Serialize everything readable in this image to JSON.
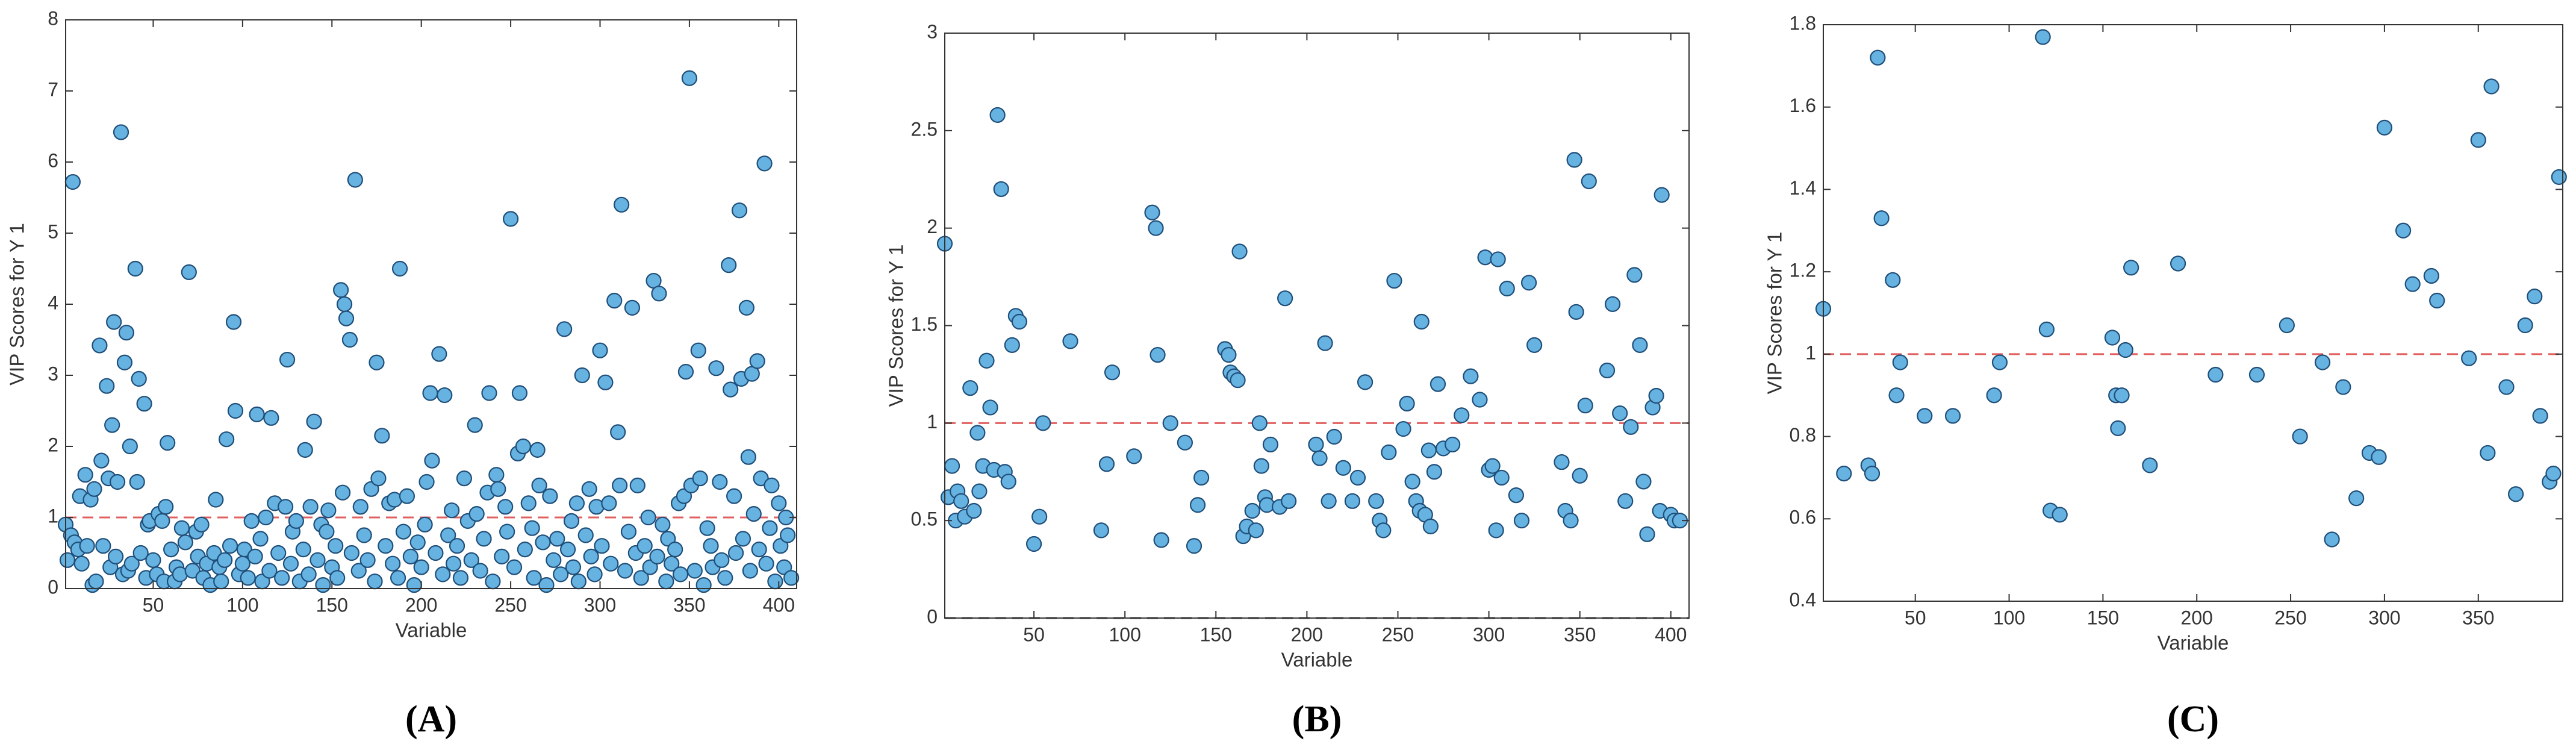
{
  "chart_data": [
    {
      "type": "scatter",
      "panel_label": "(A)",
      "xlabel": "Variable",
      "ylabel": "VIP Scores for Y 1",
      "xlim": [
        1,
        410
      ],
      "ylim": [
        0,
        8
      ],
      "xticks": [
        50,
        100,
        150,
        200,
        250,
        300,
        350,
        400
      ],
      "yticks": [
        0,
        1,
        2,
        3,
        4,
        5,
        6,
        7,
        8
      ],
      "color": "#66b2e0",
      "edge_color": "#1f4e79",
      "threshold": 1,
      "threshold_color": "#e06060",
      "x": [
        1,
        2,
        4,
        5,
        6,
        8,
        9,
        10,
        12,
        13,
        15,
        16,
        17,
        18,
        20,
        21,
        22,
        24,
        25,
        26,
        27,
        28,
        29,
        30,
        32,
        33,
        34,
        35,
        36,
        37,
        38,
        40,
        41,
        42,
        43,
        45,
        46,
        47,
        48,
        50,
        52,
        53,
        55,
        56,
        57,
        58,
        60,
        62,
        63,
        65,
        66,
        68,
        70,
        72,
        74,
        75,
        77,
        78,
        80,
        82,
        84,
        85,
        87,
        88,
        90,
        91,
        93,
        95,
        96,
        98,
        100,
        101,
        103,
        105,
        107,
        108,
        110,
        111,
        113,
        115,
        116,
        118,
        120,
        122,
        124,
        125,
        127,
        128,
        130,
        132,
        134,
        135,
        137,
        138,
        140,
        142,
        144,
        145,
        147,
        148,
        150,
        152,
        153,
        155,
        156,
        157,
        158,
        160,
        161,
        163,
        165,
        166,
        168,
        170,
        172,
        174,
        175,
        176,
        178,
        180,
        182,
        184,
        185,
        187,
        188,
        190,
        192,
        194,
        196,
        198,
        200,
        202,
        203,
        205,
        206,
        208,
        210,
        212,
        213,
        215,
        217,
        218,
        220,
        222,
        224,
        226,
        228,
        230,
        231,
        233,
        235,
        237,
        238,
        240,
        242,
        243,
        245,
        247,
        248,
        250,
        252,
        254,
        255,
        257,
        258,
        260,
        262,
        263,
        265,
        266,
        268,
        270,
        272,
        274,
        276,
        278,
        280,
        282,
        284,
        285,
        287,
        288,
        290,
        292,
        294,
        295,
        297,
        298,
        300,
        301,
        303,
        305,
        306,
        308,
        310,
        311,
        312,
        314,
        316,
        318,
        320,
        321,
        323,
        325,
        327,
        328,
        330,
        332,
        333,
        335,
        337,
        338,
        340,
        342,
        344,
        345,
        347,
        348,
        350,
        351,
        353,
        355,
        356,
        358,
        360,
        362,
        363,
        365,
        367,
        368,
        370,
        372,
        373,
        375,
        376,
        378,
        379,
        380,
        382,
        383,
        384,
        385,
        386,
        388,
        389,
        390,
        392,
        393,
        395,
        396,
        398,
        400,
        401,
        403,
        404,
        405,
        407
      ],
      "values": [
        0.9,
        0.4,
        0.75,
        5.72,
        0.65,
        0.55,
        1.3,
        0.35,
        1.6,
        0.6,
        1.25,
        0.05,
        1.4,
        0.1,
        3.42,
        1.8,
        0.6,
        2.85,
        1.55,
        0.3,
        2.3,
        3.75,
        0.45,
        1.5,
        6.42,
        0.2,
        3.18,
        3.6,
        0.25,
        2.0,
        0.35,
        4.5,
        1.5,
        2.95,
        0.5,
        2.6,
        0.15,
        0.9,
        0.95,
        0.4,
        0.2,
        1.05,
        0.95,
        0.1,
        1.15,
        2.05,
        0.55,
        0.1,
        0.3,
        0.2,
        0.85,
        0.65,
        4.45,
        0.25,
        0.8,
        0.45,
        0.9,
        0.15,
        0.35,
        0.05,
        0.5,
        1.25,
        0.3,
        0.1,
        0.4,
        2.1,
        0.6,
        3.75,
        2.5,
        0.2,
        0.35,
        0.55,
        0.15,
        0.95,
        0.45,
        2.45,
        0.7,
        0.1,
        1.0,
        0.25,
        2.4,
        1.2,
        0.5,
        0.15,
        1.15,
        3.22,
        0.35,
        0.8,
        0.95,
        0.1,
        0.55,
        1.95,
        0.2,
        1.15,
        2.35,
        0.4,
        0.9,
        0.05,
        0.8,
        1.1,
        0.3,
        0.6,
        0.15,
        4.2,
        1.35,
        4.0,
        3.8,
        3.5,
        0.5,
        5.75,
        0.25,
        1.15,
        0.75,
        0.4,
        1.4,
        0.1,
        3.18,
        1.55,
        2.15,
        0.6,
        1.2,
        0.35,
        1.25,
        0.15,
        4.5,
        0.8,
        1.3,
        0.45,
        0.05,
        0.65,
        0.3,
        0.9,
        1.5,
        2.75,
        1.8,
        0.5,
        3.3,
        0.2,
        2.72,
        0.75,
        1.1,
        0.35,
        0.6,
        0.15,
        1.55,
        0.95,
        0.4,
        2.3,
        1.05,
        0.25,
        0.7,
        1.35,
        2.75,
        0.1,
        1.6,
        1.4,
        0.45,
        1.15,
        0.8,
        5.2,
        0.3,
        1.9,
        2.75,
        2.0,
        0.55,
        1.2,
        0.85,
        0.15,
        1.95,
        1.45,
        0.65,
        0.05,
        1.3,
        0.4,
        0.7,
        0.2,
        3.65,
        0.55,
        0.95,
        0.3,
        1.2,
        0.1,
        3.0,
        0.75,
        1.4,
        0.45,
        0.2,
        1.15,
        3.35,
        0.6,
        2.9,
        1.2,
        0.35,
        4.05,
        2.2,
        1.45,
        5.4,
        0.25,
        0.8,
        3.95,
        0.5,
        1.45,
        0.15,
        0.6,
        1.0,
        0.3,
        4.33,
        0.45,
        4.15,
        0.9,
        0.1,
        0.7,
        0.35,
        0.55,
        1.2,
        0.2,
        1.3,
        3.05,
        7.18,
        1.45,
        0.25,
        3.35,
        1.55,
        0.05,
        0.85,
        0.6,
        0.3,
        3.1,
        1.5,
        0.4,
        0.15,
        4.55,
        2.8,
        1.3,
        0.5,
        5.32,
        2.95,
        0.7,
        3.95,
        1.85,
        0.25,
        3.02,
        1.05,
        3.2,
        0.55,
        1.55,
        5.98,
        0.35,
        0.85,
        1.45,
        0.1,
        1.2,
        0.6,
        0.3,
        1.0,
        0.75,
        0.15
      ]
    },
    {
      "type": "scatter",
      "panel_label": "(B)",
      "xlabel": "Variable",
      "ylabel": "VIP Scores for Y 1",
      "xlim": [
        1,
        410
      ],
      "ylim": [
        0,
        3
      ],
      "xticks": [
        50,
        100,
        150,
        200,
        250,
        300,
        350,
        400
      ],
      "yticks": [
        0,
        0.5,
        1,
        1.5,
        2,
        2.5,
        3
      ],
      "color": "#66b2e0",
      "edge_color": "#1f4e79",
      "threshold": 1,
      "threshold_color": "#e06060",
      "baseline": 0,
      "x": [
        1,
        3,
        5,
        7,
        8,
        10,
        12,
        15,
        17,
        19,
        20,
        22,
        24,
        26,
        28,
        30,
        32,
        34,
        36,
        38,
        40,
        42,
        50,
        53,
        55,
        70,
        87,
        90,
        93,
        105,
        115,
        117,
        118,
        120,
        125,
        133,
        138,
        140,
        142,
        155,
        157,
        158,
        160,
        162,
        163,
        165,
        167,
        170,
        172,
        174,
        175,
        177,
        178,
        180,
        185,
        188,
        190,
        205,
        207,
        210,
        212,
        215,
        220,
        225,
        228,
        232,
        238,
        240,
        242,
        245,
        248,
        253,
        255,
        258,
        260,
        262,
        263,
        265,
        267,
        268,
        270,
        272,
        275,
        280,
        285,
        290,
        295,
        298,
        300,
        302,
        304,
        305,
        307,
        310,
        315,
        318,
        322,
        325,
        340,
        342,
        345,
        347,
        348,
        350,
        353,
        355,
        365,
        368,
        372,
        375,
        378,
        380,
        383,
        385,
        387,
        390,
        392,
        394,
        395,
        400,
        402,
        405
      ],
      "values": [
        1.92,
        0.62,
        0.78,
        0.5,
        0.65,
        0.6,
        0.52,
        1.18,
        0.55,
        0.95,
        0.65,
        0.78,
        1.32,
        1.08,
        0.76,
        2.58,
        2.2,
        0.75,
        0.7,
        1.4,
        1.55,
        1.52,
        0.38,
        0.52,
        1.0,
        1.42,
        0.45,
        0.79,
        1.26,
        0.83,
        2.08,
        2.0,
        1.35,
        0.4,
        1.0,
        0.9,
        0.37,
        0.58,
        0.72,
        1.38,
        1.35,
        1.26,
        1.24,
        1.22,
        1.88,
        0.42,
        0.47,
        0.55,
        0.45,
        1.0,
        0.78,
        0.62,
        0.58,
        0.89,
        0.57,
        1.64,
        0.6,
        0.89,
        0.82,
        1.41,
        0.6,
        0.93,
        0.77,
        0.6,
        0.72,
        1.21,
        0.6,
        0.5,
        0.45,
        0.85,
        1.73,
        0.97,
        1.1,
        0.7,
        0.6,
        0.55,
        1.52,
        0.53,
        0.86,
        0.47,
        0.75,
        1.2,
        0.87,
        0.89,
        1.04,
        1.24,
        1.12,
        1.85,
        0.76,
        0.78,
        0.45,
        1.84,
        0.72,
        1.69,
        0.63,
        0.5,
        1.72,
        1.4,
        0.8,
        0.55,
        0.5,
        2.35,
        1.57,
        0.73,
        1.09,
        2.24,
        1.27,
        1.61,
        1.05,
        0.6,
        0.98,
        1.76,
        1.4,
        0.7,
        0.43,
        1.08,
        1.14,
        0.55,
        2.17,
        0.53,
        0.5,
        0.5
      ]
    },
    {
      "type": "scatter",
      "panel_label": "(C)",
      "xlabel": "Variable",
      "ylabel": "VIP Scores for Y 1",
      "xlim": [
        1,
        395
      ],
      "ylim": [
        0.4,
        1.8
      ],
      "xticks": [
        50,
        100,
        150,
        200,
        250,
        300,
        350
      ],
      "yticks": [
        0.4,
        0.6,
        0.8,
        1,
        1.2,
        1.4,
        1.6,
        1.8
      ],
      "color": "#66b2e0",
      "edge_color": "#1f4e79",
      "threshold": 1,
      "threshold_color": "#e06060",
      "x": [
        1,
        12,
        25,
        27,
        30,
        32,
        38,
        40,
        42,
        55,
        70,
        92,
        95,
        118,
        120,
        122,
        127,
        155,
        157,
        158,
        160,
        162,
        165,
        175,
        190,
        210,
        232,
        248,
        255,
        267,
        272,
        278,
        285,
        292,
        297,
        300,
        310,
        315,
        325,
        328,
        345,
        350,
        355,
        357,
        365,
        370,
        375,
        380,
        383,
        388,
        390,
        393
      ],
      "values": [
        1.11,
        0.71,
        0.73,
        0.71,
        1.72,
        1.33,
        1.18,
        0.9,
        0.98,
        0.85,
        0.85,
        0.9,
        0.98,
        1.77,
        1.06,
        0.62,
        0.61,
        1.04,
        0.9,
        0.82,
        0.9,
        1.01,
        1.21,
        0.73,
        1.22,
        0.95,
        0.95,
        1.07,
        0.8,
        0.98,
        0.55,
        0.92,
        0.65,
        0.76,
        0.75,
        1.55,
        1.3,
        1.17,
        1.19,
        1.13,
        0.99,
        1.52,
        0.76,
        1.65,
        0.92,
        0.66,
        1.07,
        1.14,
        0.85,
        0.69,
        0.71,
        1.43
      ]
    }
  ]
}
